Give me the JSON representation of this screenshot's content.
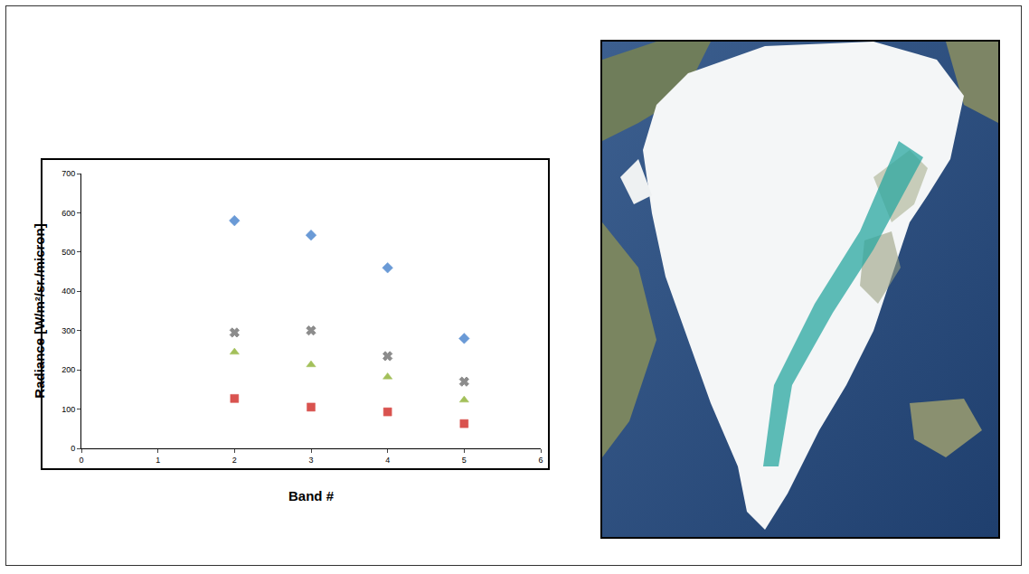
{
  "chart_data": {
    "type": "scatter",
    "x_label": "Band #",
    "y_label": "Radiance [W/m²/sr./micron]",
    "x": [
      2,
      3,
      4,
      5
    ],
    "series": [
      {
        "color": "#6a9ad6",
        "marker": "diamond",
        "values": [
          580,
          543,
          460,
          280
        ]
      },
      {
        "color": "#8c8c8c",
        "marker": "x",
        "values": [
          295,
          300,
          235,
          170
        ]
      },
      {
        "color": "#a3c05a",
        "marker": "triangle-up",
        "values": [
          245,
          213,
          182,
          123
        ]
      },
      {
        "color": "#d9534f",
        "marker": "square",
        "values": [
          127,
          105,
          93,
          63
        ]
      }
    ],
    "xlim": [
      0,
      6
    ],
    "xticks": [
      0,
      1,
      2,
      3,
      4,
      5,
      6
    ],
    "ylim": [
      0,
      700
    ],
    "yticks": [
      0,
      100,
      200,
      300,
      400,
      500,
      600,
      700
    ],
    "grid": false
  }
}
